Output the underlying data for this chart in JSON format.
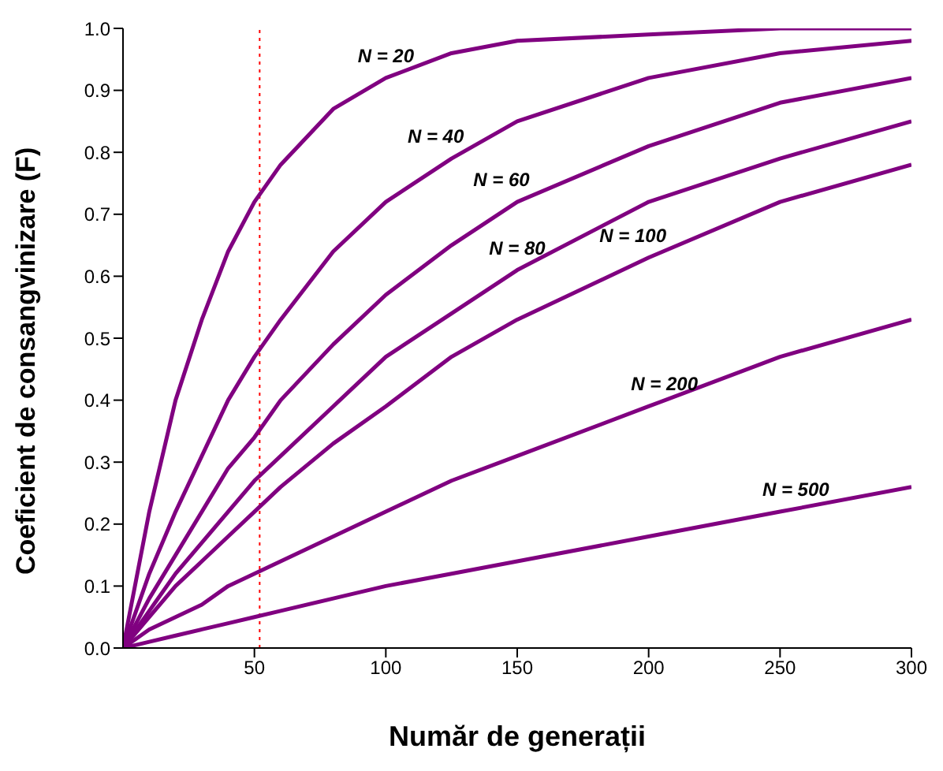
{
  "chart_data": {
    "type": "line",
    "xlabel": "Număr de generații",
    "ylabel": "Coeficient de consangvinizare (F)",
    "x": [
      0,
      10,
      20,
      30,
      40,
      50,
      60,
      80,
      100,
      125,
      150,
      200,
      250,
      300
    ],
    "series": [
      {
        "name": "N = 20",
        "color": "#800080",
        "values": [
          0,
          0.22,
          0.4,
          0.53,
          0.64,
          0.72,
          0.78,
          0.87,
          0.92,
          0.96,
          0.98,
          0.99,
          1.0,
          1.0
        ]
      },
      {
        "name": "N = 40",
        "color": "#800080",
        "values": [
          0,
          0.12,
          0.22,
          0.31,
          0.4,
          0.47,
          0.53,
          0.64,
          0.72,
          0.79,
          0.85,
          0.92,
          0.96,
          0.98
        ]
      },
      {
        "name": "N = 60",
        "color": "#800080",
        "values": [
          0,
          0.08,
          0.15,
          0.22,
          0.29,
          0.34,
          0.4,
          0.49,
          0.57,
          0.65,
          0.72,
          0.81,
          0.88,
          0.92
        ]
      },
      {
        "name": "N = 80",
        "color": "#800080",
        "values": [
          0,
          0.06,
          0.12,
          0.17,
          0.22,
          0.27,
          0.31,
          0.39,
          0.47,
          0.54,
          0.61,
          0.72,
          0.79,
          0.85
        ]
      },
      {
        "name": "N = 100",
        "color": "#800080",
        "values": [
          0,
          0.05,
          0.1,
          0.14,
          0.18,
          0.22,
          0.26,
          0.33,
          0.39,
          0.47,
          0.53,
          0.63,
          0.72,
          0.78
        ]
      },
      {
        "name": "N = 200",
        "color": "#800080",
        "values": [
          0,
          0.03,
          0.05,
          0.07,
          0.1,
          0.12,
          0.14,
          0.18,
          0.22,
          0.27,
          0.31,
          0.39,
          0.47,
          0.53
        ]
      },
      {
        "name": "N = 500",
        "color": "#800080",
        "values": [
          0,
          0.01,
          0.02,
          0.03,
          0.04,
          0.05,
          0.06,
          0.08,
          0.1,
          0.12,
          0.14,
          0.18,
          0.22,
          0.26
        ]
      }
    ],
    "xlim": [
      0,
      300
    ],
    "xticks": [
      50,
      100,
      150,
      200,
      250,
      300
    ],
    "ylim": [
      0,
      1
    ],
    "yticks": [
      {
        "value": 0,
        "label": "0.0"
      },
      {
        "value": 0.1,
        "label": "0.1"
      },
      {
        "value": 0.2,
        "label": "0.2"
      },
      {
        "value": 0.3,
        "label": "0.3"
      },
      {
        "value": 0.4,
        "label": "0.4"
      },
      {
        "value": 0.5,
        "label": "0.5"
      },
      {
        "value": 0.6,
        "label": "0.6"
      },
      {
        "value": 0.7,
        "label": "0.7"
      },
      {
        "value": 0.8,
        "label": "0.8"
      },
      {
        "value": 0.9,
        "label": "0.9"
      },
      {
        "value": 1,
        "label": "1.0"
      }
    ],
    "ref_lines": [
      {
        "axis": "x",
        "value": 52,
        "color": "#ff0000",
        "line_style": "dotted"
      }
    ],
    "grid": false,
    "legend": false,
    "marker": "none",
    "line_style": "solid"
  }
}
